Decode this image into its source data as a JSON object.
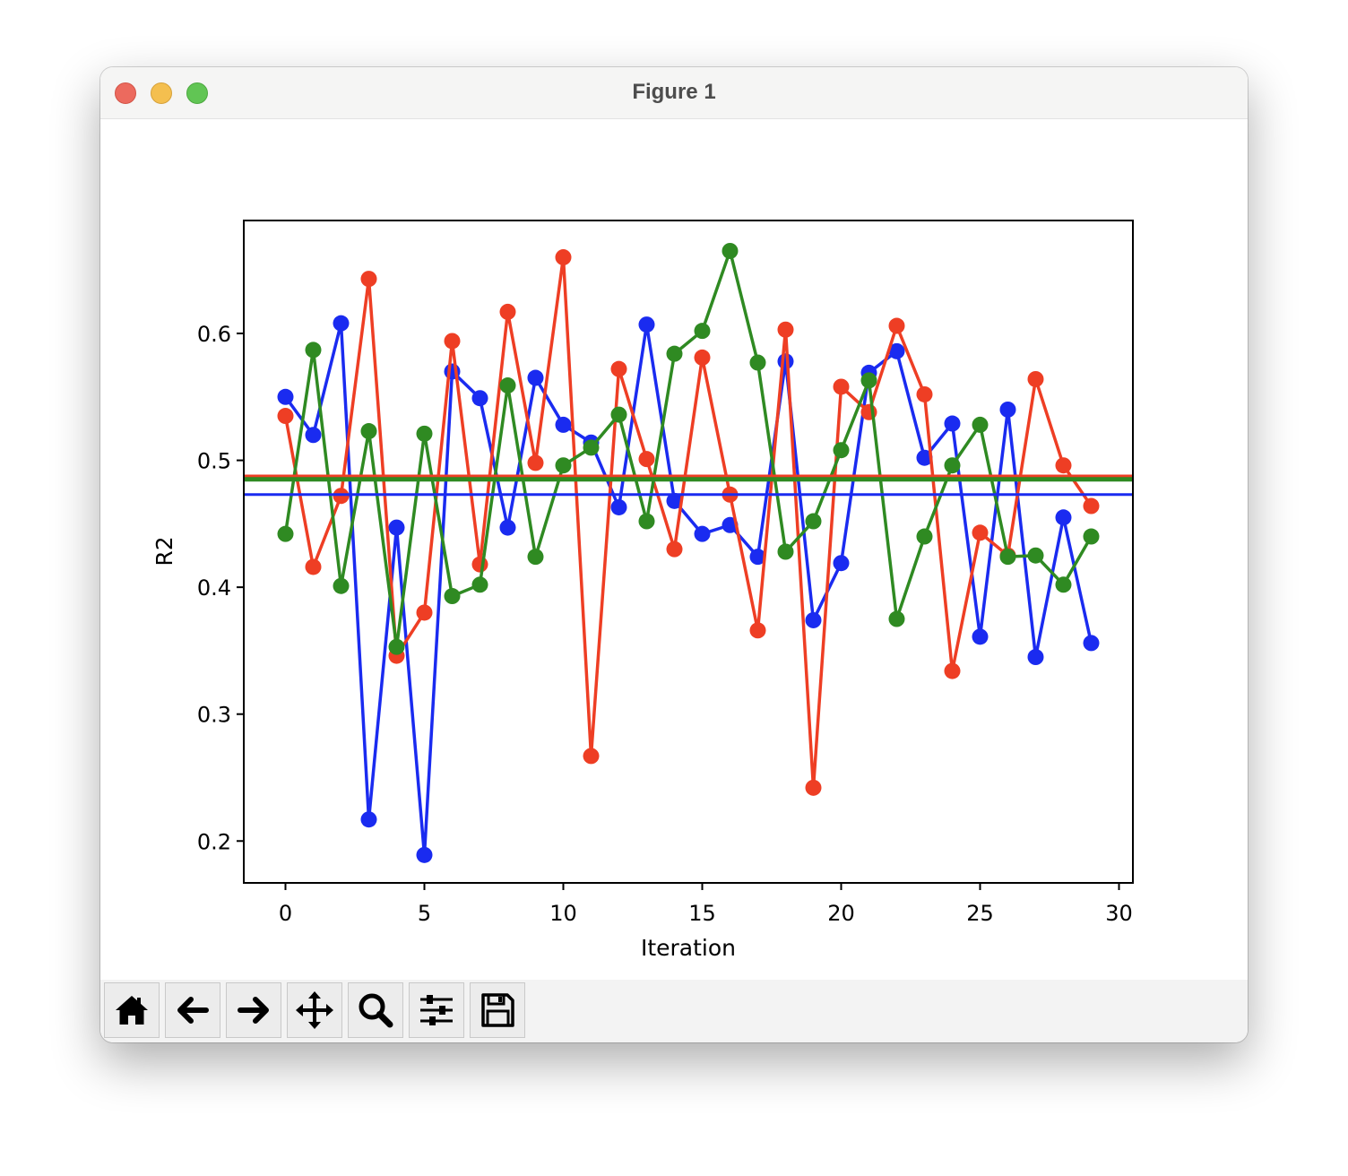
{
  "window": {
    "title": "Figure 1"
  },
  "toolbar": {
    "buttons": [
      {
        "name": "home-button",
        "icon": "home-icon"
      },
      {
        "name": "back-button",
        "icon": "arrow-left-icon"
      },
      {
        "name": "forward-button",
        "icon": "arrow-right-icon"
      },
      {
        "name": "pan-button",
        "icon": "move-icon"
      },
      {
        "name": "zoom-button",
        "icon": "magnifier-icon"
      },
      {
        "name": "configure-subplots-button",
        "icon": "sliders-icon"
      },
      {
        "name": "save-button",
        "icon": "floppy-disk-icon"
      }
    ]
  },
  "chart_data": {
    "type": "line",
    "title": "",
    "xlabel": "Iteration",
    "ylabel": "R2",
    "xlim": [
      -1.5,
      30.5
    ],
    "ylim": [
      0.167,
      0.689
    ],
    "xticks": [
      0,
      5,
      10,
      15,
      20,
      25,
      30
    ],
    "yticks": [
      0.2,
      0.3,
      0.4,
      0.5,
      0.6
    ],
    "grid": false,
    "x": [
      0,
      1,
      2,
      3,
      4,
      5,
      6,
      7,
      8,
      9,
      10,
      11,
      12,
      13,
      14,
      15,
      16,
      17,
      18,
      19,
      20,
      21,
      22,
      23,
      24,
      25,
      26,
      27,
      28,
      29
    ],
    "series": [
      {
        "color": "#1a2bf0",
        "marker": "circle",
        "values": [
          0.55,
          0.52,
          0.608,
          0.217,
          0.447,
          0.189,
          0.57,
          0.549,
          0.447,
          0.565,
          0.528,
          0.514,
          0.463,
          0.607,
          0.468,
          0.442,
          0.449,
          0.424,
          0.578,
          0.374,
          0.419,
          0.569,
          0.586,
          0.502,
          0.529,
          0.361,
          0.54,
          0.345,
          0.455,
          0.356
        ],
        "mean": 0.473
      },
      {
        "color": "#ee3e24",
        "marker": "circle",
        "values": [
          0.535,
          0.416,
          0.472,
          0.643,
          0.346,
          0.38,
          0.594,
          0.418,
          0.617,
          0.498,
          0.66,
          0.267,
          0.572,
          0.501,
          0.43,
          0.581,
          0.473,
          0.366,
          0.603,
          0.242,
          0.558,
          0.538,
          0.606,
          0.552,
          0.334,
          0.443,
          0.425,
          0.564,
          0.496,
          0.464
        ],
        "mean": 0.487
      },
      {
        "color": "#2f8a22",
        "marker": "circle",
        "values": [
          0.442,
          0.587,
          0.401,
          0.523,
          0.353,
          0.521,
          0.393,
          0.402,
          0.559,
          0.424,
          0.496,
          0.51,
          0.536,
          0.452,
          0.584,
          0.602,
          0.665,
          0.577,
          0.428,
          0.452,
          0.508,
          0.563,
          0.375,
          0.44,
          0.496,
          0.528,
          0.424,
          0.425,
          0.402,
          0.44
        ],
        "mean": 0.485
      }
    ]
  }
}
